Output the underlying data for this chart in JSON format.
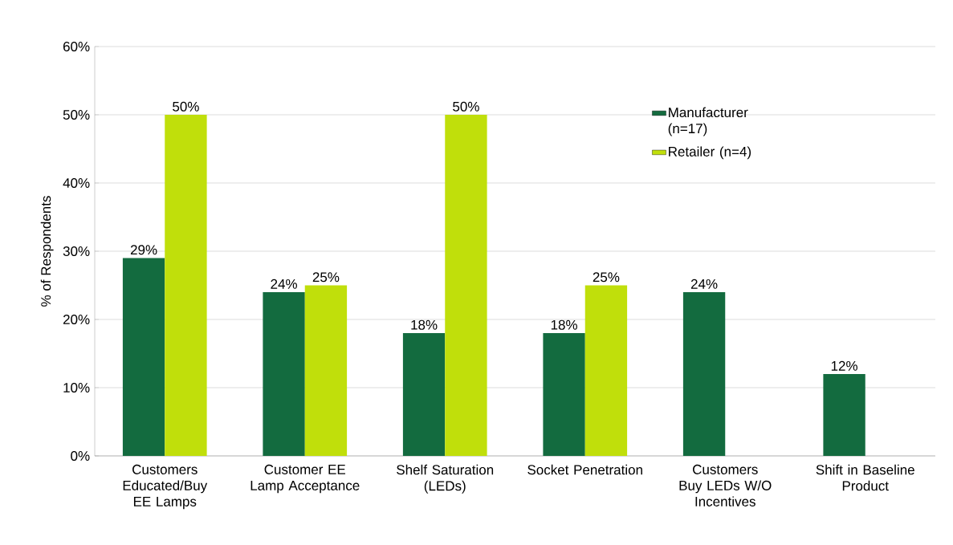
{
  "chart_data": {
    "type": "bar",
    "categories": [
      "Customers Educated/Buy EE Lamps",
      "Customer EE Lamp Acceptance",
      "Shelf Saturation (LEDs)",
      "Socket Penetration",
      "Customers Buy LEDs W/O Incentives",
      "Shift in Baseline Product"
    ],
    "series": [
      {
        "name": "Manufacturer (n=17)",
        "color": "#136b3f",
        "values": [
          29,
          24,
          18,
          18,
          24,
          12
        ],
        "value_labels": [
          "29%",
          "24%",
          "18%",
          "18%",
          "24%",
          "12%"
        ]
      },
      {
        "name": "Retailer (n=4)",
        "color": "#c0df0b",
        "values": [
          50,
          25,
          50,
          25,
          null,
          null
        ],
        "value_labels": [
          "50%",
          "25%",
          "50%",
          "25%",
          null,
          null
        ]
      }
    ],
    "ylabel": "% of Respondents",
    "ylim": [
      0,
      60
    ],
    "yticks": [
      {
        "value": 0,
        "label": "0%"
      },
      {
        "value": 10,
        "label": "10%"
      },
      {
        "value": 20,
        "label": "20%"
      },
      {
        "value": 30,
        "label": "30%"
      },
      {
        "value": 40,
        "label": "40%"
      },
      {
        "value": 50,
        "label": "50%"
      },
      {
        "value": 60,
        "label": "60%"
      }
    ],
    "grid": "y",
    "legend": "top right"
  }
}
